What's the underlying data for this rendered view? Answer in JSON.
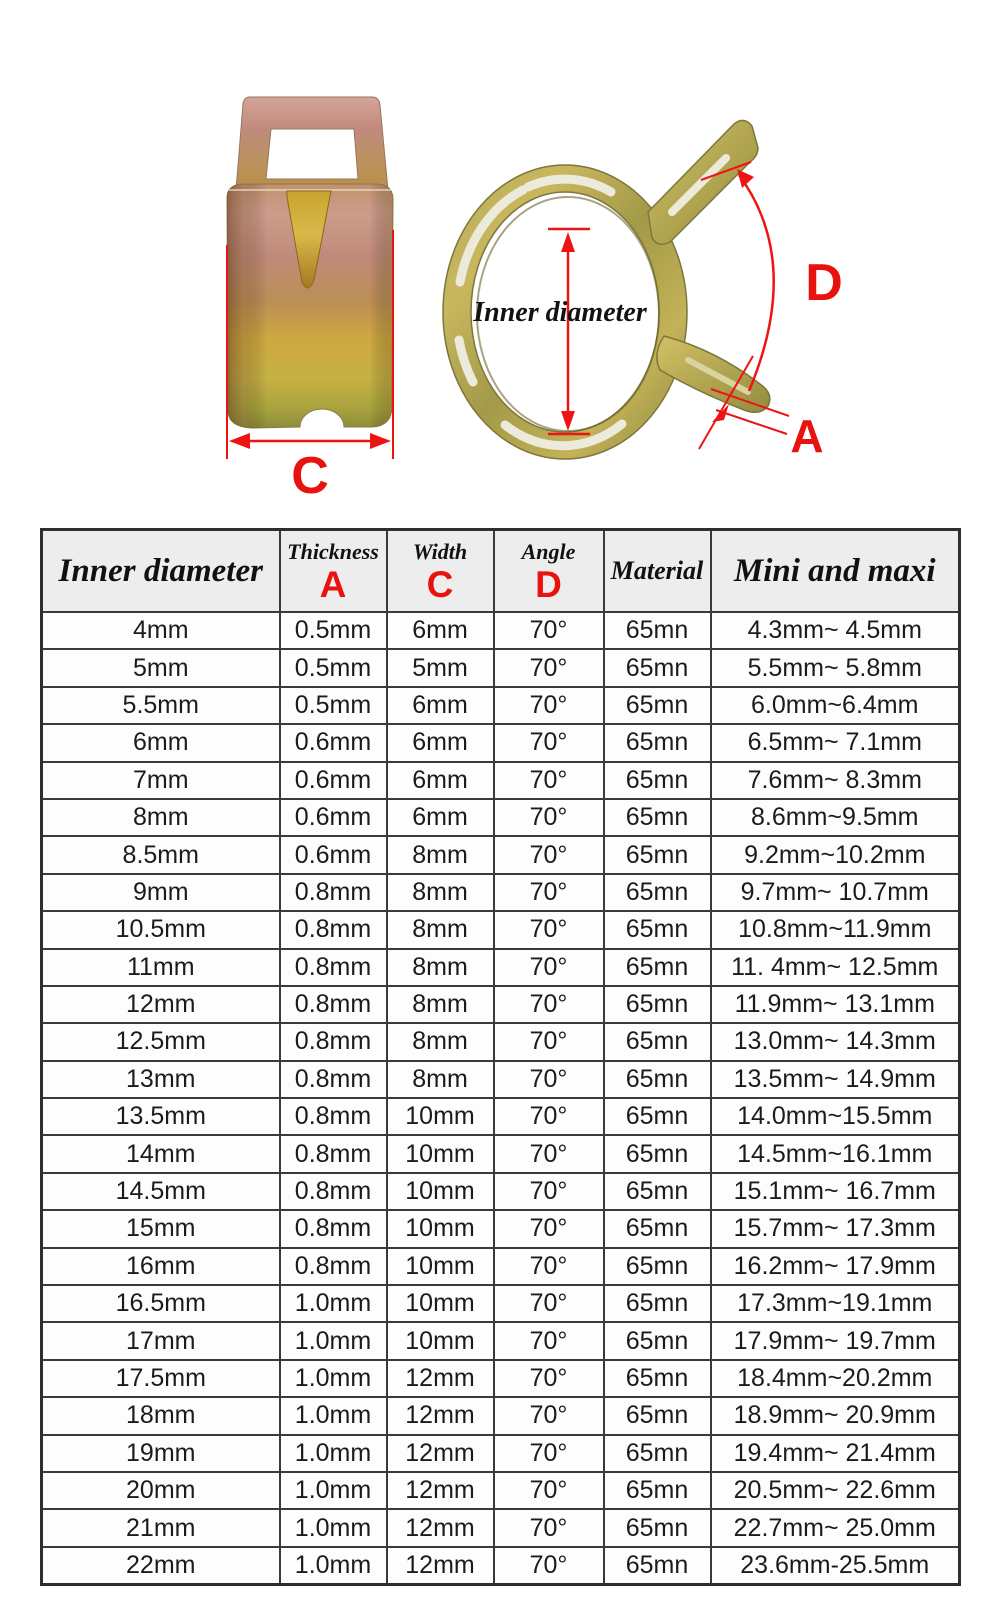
{
  "figure": {
    "side_view": {
      "width_dimension_label": "C"
    },
    "front_view": {
      "inner_diameter_label": "Inner diameter",
      "angle_dimension_label": "D",
      "thickness_dimension_label": "A"
    },
    "annotation_color": "#ee1414",
    "metal_colors": {
      "rose": "#c08a79",
      "gold": "#cfa93f",
      "olive": "#8e8c3a"
    }
  },
  "table": {
    "header": {
      "col_inner_diameter": "Inner diameter",
      "col_thickness": "Thickness",
      "col_thickness_letter": "A",
      "col_width": "Width",
      "col_width_letter": "C",
      "col_angle": "Angle",
      "col_angle_letter": "D",
      "col_material": "Material",
      "col_min_max": "Mini and maxi"
    },
    "rows": [
      [
        "4mm",
        "0.5mm",
        "6mm",
        "70°",
        "65mn",
        "4.3mm~ 4.5mm"
      ],
      [
        "5mm",
        "0.5mm",
        "5mm",
        "70°",
        "65mn",
        "5.5mm~ 5.8mm"
      ],
      [
        "5.5mm",
        "0.5mm",
        "6mm",
        "70°",
        "65mn",
        "6.0mm~6.4mm"
      ],
      [
        "6mm",
        "0.6mm",
        "6mm",
        "70°",
        "65mn",
        "6.5mm~ 7.1mm"
      ],
      [
        "7mm",
        "0.6mm",
        "6mm",
        "70°",
        "65mn",
        "7.6mm~ 8.3mm"
      ],
      [
        "8mm",
        "0.6mm",
        "6mm",
        "70°",
        "65mn",
        "8.6mm~9.5mm"
      ],
      [
        "8.5mm",
        "0.6mm",
        "8mm",
        "70°",
        "65mn",
        "9.2mm~10.2mm"
      ],
      [
        "9mm",
        "0.8mm",
        "8mm",
        "70°",
        "65mn",
        "9.7mm~ 10.7mm"
      ],
      [
        "10.5mm",
        "0.8mm",
        "8mm",
        "70°",
        "65mn",
        "10.8mm~11.9mm"
      ],
      [
        "11mm",
        "0.8mm",
        "8mm",
        "70°",
        "65mn",
        "11. 4mm~ 12.5mm"
      ],
      [
        "12mm",
        "0.8mm",
        "8mm",
        "70°",
        "65mn",
        "11.9mm~ 13.1mm"
      ],
      [
        "12.5mm",
        "0.8mm",
        "8mm",
        "70°",
        "65mn",
        "13.0mm~ 14.3mm"
      ],
      [
        "13mm",
        "0.8mm",
        "8mm",
        "70°",
        "65mn",
        "13.5mm~ 14.9mm"
      ],
      [
        "13.5mm",
        "0.8mm",
        "10mm",
        "70°",
        "65mn",
        "14.0mm~15.5mm"
      ],
      [
        "14mm",
        "0.8mm",
        "10mm",
        "70°",
        "65mn",
        "14.5mm~16.1mm"
      ],
      [
        "14.5mm",
        "0.8mm",
        "10mm",
        "70°",
        "65mn",
        "15.1mm~ 16.7mm"
      ],
      [
        "15mm",
        "0.8mm",
        "10mm",
        "70°",
        "65mn",
        "15.7mm~ 17.3mm"
      ],
      [
        "16mm",
        "0.8mm",
        "10mm",
        "70°",
        "65mn",
        "16.2mm~ 17.9mm"
      ],
      [
        "16.5mm",
        "1.0mm",
        "10mm",
        "70°",
        "65mn",
        "17.3mm~19.1mm"
      ],
      [
        "17mm",
        "1.0mm",
        "10mm",
        "70°",
        "65mn",
        "17.9mm~ 19.7mm"
      ],
      [
        "17.5mm",
        "1.0mm",
        "12mm",
        "70°",
        "65mn",
        "18.4mm~20.2mm"
      ],
      [
        "18mm",
        "1.0mm",
        "12mm",
        "70°",
        "65mn",
        "18.9mm~ 20.9mm"
      ],
      [
        "19mm",
        "1.0mm",
        "12mm",
        "70°",
        "65mn",
        "19.4mm~ 21.4mm"
      ],
      [
        "20mm",
        "1.0mm",
        "12mm",
        "70°",
        "65mn",
        "20.5mm~ 22.6mm"
      ],
      [
        "21mm",
        "1.0mm",
        "12mm",
        "70°",
        "65mn",
        "22.7mm~ 25.0mm"
      ],
      [
        "22mm",
        "1.0mm",
        "12mm",
        "70°",
        "65mn",
        "23.6mm-25.5mm"
      ]
    ]
  }
}
